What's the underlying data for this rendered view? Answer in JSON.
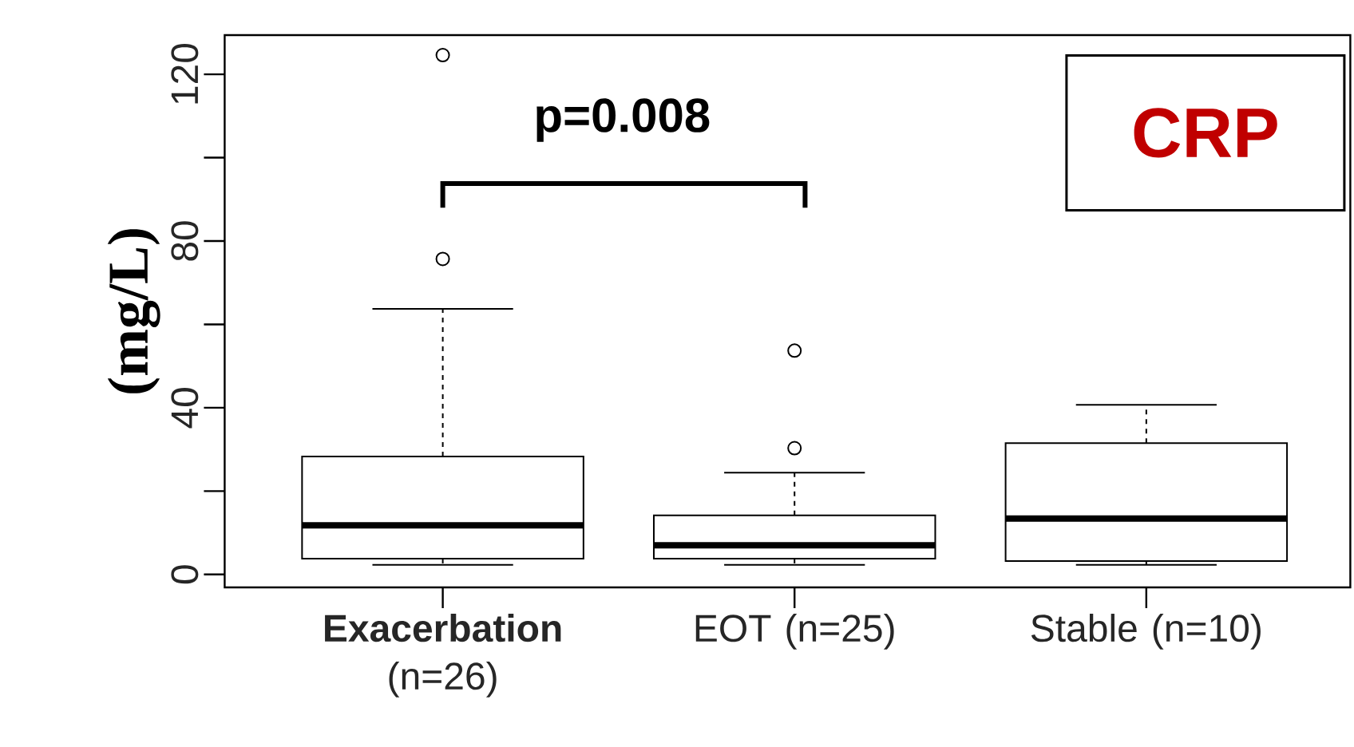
{
  "chart_data": {
    "type": "box",
    "title": "CRP",
    "ylabel": "(mg/L)",
    "categories": [
      "**Exacerbation** (n=26)",
      "EOT (n=25)",
      "Stable (n=10)"
    ],
    "boxes": [
      {
        "low": 2.3,
        "q1": 3.8,
        "median": 11.8,
        "q3": 28.3,
        "high": 63.7,
        "outliers": [
          75.7,
          124.6
        ]
      },
      {
        "low": 2.3,
        "q1": 3.8,
        "median": 7.0,
        "q3": 14.2,
        "high": 24.4,
        "outliers": [
          30.3,
          53.7
        ]
      },
      {
        "low": 2.3,
        "q1": 3.2,
        "median": 13.4,
        "q3": 31.5,
        "high": 40.7
      }
    ],
    "ylim": [
      -3.1,
      129.4
    ],
    "yticks": [
      0,
      {
        "value": 20,
        "label": null
      },
      40,
      {
        "value": 60,
        "label": null
      },
      80,
      {
        "value": 100,
        "label": null
      },
      120
    ],
    "annotations": [
      "p=0.008"
    ]
  }
}
